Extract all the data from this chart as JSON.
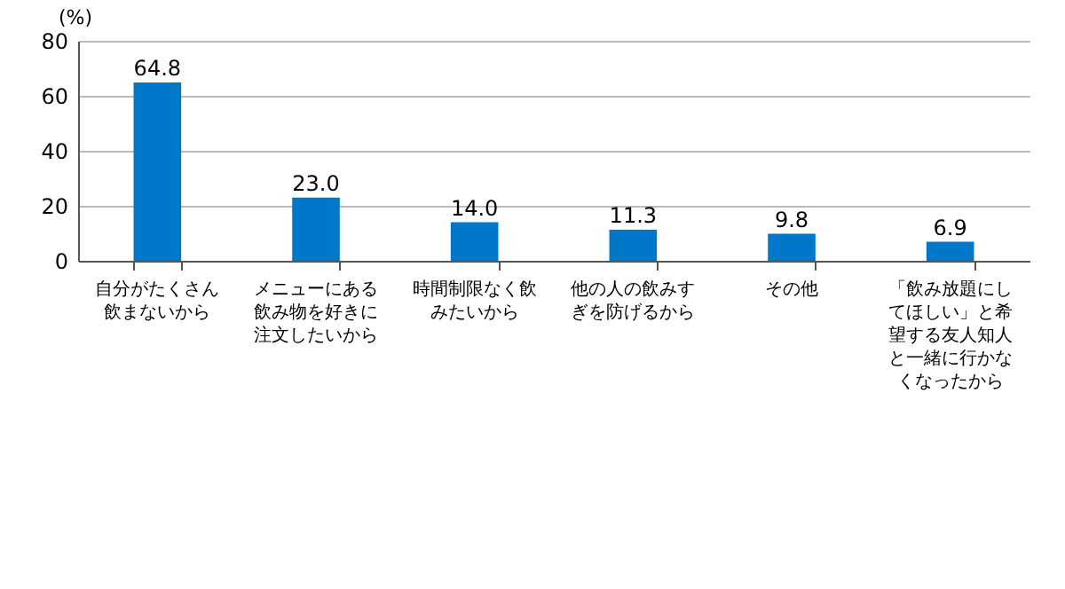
{
  "chart_data": {
    "type": "bar",
    "ylabel": "(%)",
    "categories": [
      "自分がたくさん飲まないから",
      "メニューにある飲み物を好きに注文したいから",
      "時間制限なく飲みたいから",
      "他の人の飲みすぎを防げるから",
      "その他",
      "「飲み放題にしてほしい」と希望する友人知人と一緒に行かなくなったから"
    ],
    "values": [
      64.8,
      23.0,
      14.0,
      11.3,
      9.8,
      6.9
    ],
    "data_labels": true,
    "value_labels": [
      "64.8",
      "23.0",
      "14.0",
      "11.3",
      "9.8",
      "6.9"
    ],
    "color": "#0077c8",
    "ylim": [
      0,
      80
    ],
    "yticks": [
      0,
      20,
      40,
      60,
      80
    ],
    "grid": "y"
  }
}
